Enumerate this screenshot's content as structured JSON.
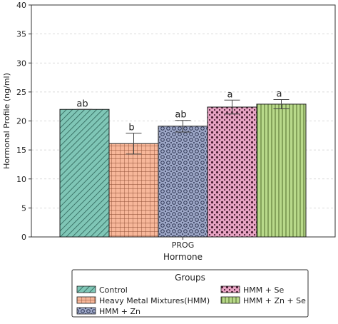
{
  "chart_data": {
    "type": "bar",
    "categories": [
      "PROG"
    ],
    "xlabel": "Hormone",
    "ylabel": "Hormonal Profile (ng/ml)",
    "ylim": [
      0,
      40
    ],
    "yticks": [
      0,
      5,
      10,
      15,
      20,
      25,
      30,
      35,
      40
    ],
    "grid": "horizontal dashed",
    "series": [
      {
        "name": "Control",
        "value": 22.0,
        "error": 0.0,
        "label": "ab",
        "color": "#7fc6b6",
        "pattern": "diagonal"
      },
      {
        "name": "Heavy Metal Mixtures(HMM)",
        "value": 16.1,
        "error": 1.8,
        "label": "b",
        "color": "#f7b79a",
        "pattern": "grid"
      },
      {
        "name": "HMM + Zn",
        "value": 19.1,
        "error": 1.0,
        "label": "ab",
        "color": "#9ea8c8",
        "pattern": "circles"
      },
      {
        "name": "HMM + Se",
        "value": 22.4,
        "error": 1.2,
        "label": "a",
        "color": "#e8a4c4",
        "pattern": "stars"
      },
      {
        "name": "HMM + Zn + Se",
        "value": 22.9,
        "error": 0.8,
        "label": "a",
        "color": "#b8d98a",
        "pattern": "vertical"
      }
    ],
    "legend": {
      "title": "Groups",
      "placement": "bottom",
      "columns": 2
    }
  }
}
